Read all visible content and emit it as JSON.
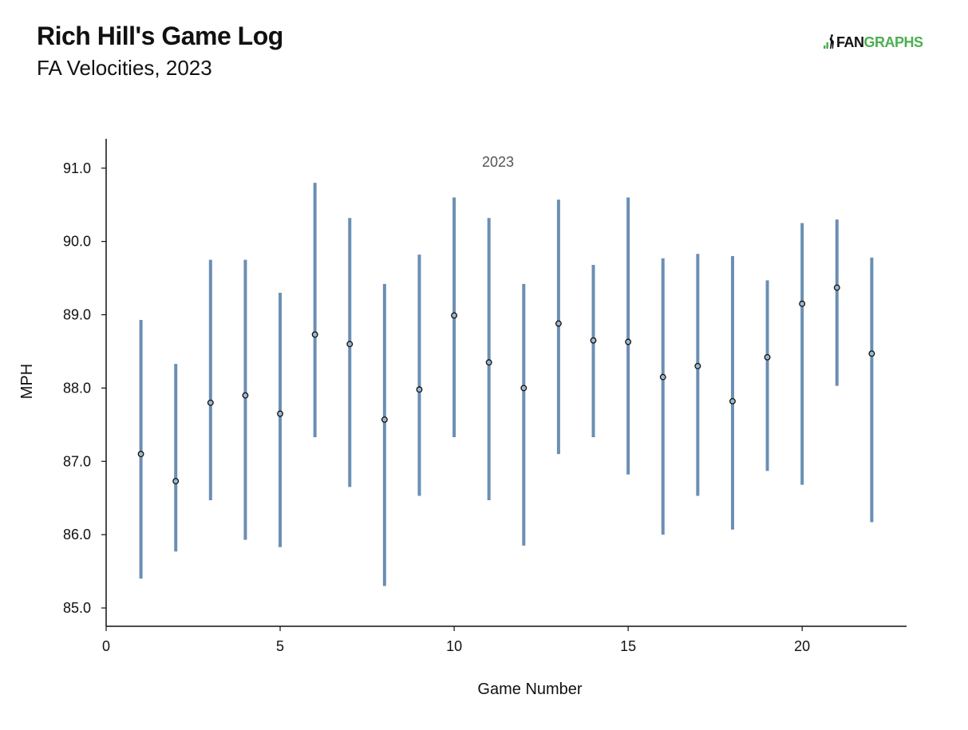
{
  "header": {
    "title": "Rich Hill's Game Log",
    "subtitle": "FA Velocities, 2023"
  },
  "logo": {
    "text_dark": "FAN",
    "text_green": "GRAPHS",
    "icon": "fangraphs-logo-icon",
    "color_green": "#4caf50"
  },
  "chart_data": {
    "type": "scatter",
    "subtype": "range-with-mean",
    "xlabel": "Game Number",
    "ylabel": "MPH",
    "annotation": "2023",
    "xlim": [
      0,
      23
    ],
    "ylim": [
      84.75,
      91.4
    ],
    "xticks": [
      0,
      5,
      10,
      15,
      20
    ],
    "xtick_labels": [
      "0",
      "5",
      "10",
      "15",
      "20"
    ],
    "yticks": [
      85.0,
      86.0,
      87.0,
      88.0,
      89.0,
      90.0,
      91.0
    ],
    "ytick_labels": [
      "85.0",
      "86.0",
      "87.0",
      "88.0",
      "89.0",
      "90.0",
      "91.0"
    ],
    "grid": false,
    "colors": {
      "range": "#6b8fb3",
      "point_fill": "#9fb8c8",
      "point_stroke": "#111111"
    },
    "points": [
      {
        "game": 1,
        "min": 85.4,
        "max": 88.93,
        "avg": 87.1
      },
      {
        "game": 2,
        "min": 85.77,
        "max": 88.33,
        "avg": 86.73
      },
      {
        "game": 3,
        "min": 86.47,
        "max": 89.75,
        "avg": 87.8
      },
      {
        "game": 4,
        "min": 85.93,
        "max": 89.75,
        "avg": 87.9
      },
      {
        "game": 5,
        "min": 85.83,
        "max": 89.3,
        "avg": 87.65
      },
      {
        "game": 6,
        "min": 87.33,
        "max": 90.8,
        "avg": 88.73
      },
      {
        "game": 7,
        "min": 86.65,
        "max": 90.32,
        "avg": 88.6
      },
      {
        "game": 8,
        "min": 85.3,
        "max": 89.42,
        "avg": 87.57
      },
      {
        "game": 9,
        "min": 86.53,
        "max": 89.82,
        "avg": 87.98
      },
      {
        "game": 10,
        "min": 87.33,
        "max": 90.6,
        "avg": 88.99
      },
      {
        "game": 11,
        "min": 86.47,
        "max": 90.32,
        "avg": 88.35
      },
      {
        "game": 12,
        "min": 85.85,
        "max": 89.42,
        "avg": 88.0
      },
      {
        "game": 13,
        "min": 87.1,
        "max": 90.57,
        "avg": 88.88
      },
      {
        "game": 14,
        "min": 87.33,
        "max": 89.68,
        "avg": 88.65
      },
      {
        "game": 15,
        "min": 86.82,
        "max": 90.6,
        "avg": 88.63
      },
      {
        "game": 16,
        "min": 86.0,
        "max": 89.77,
        "avg": 88.15
      },
      {
        "game": 17,
        "min": 86.53,
        "max": 89.83,
        "avg": 88.3
      },
      {
        "game": 18,
        "min": 86.07,
        "max": 89.8,
        "avg": 87.82
      },
      {
        "game": 19,
        "min": 86.87,
        "max": 89.47,
        "avg": 88.42
      },
      {
        "game": 20,
        "min": 86.68,
        "max": 90.25,
        "avg": 89.15
      },
      {
        "game": 21,
        "min": 88.03,
        "max": 90.3,
        "avg": 89.37
      },
      {
        "game": 22,
        "min": 86.17,
        "max": 89.78,
        "avg": 88.47
      }
    ]
  }
}
